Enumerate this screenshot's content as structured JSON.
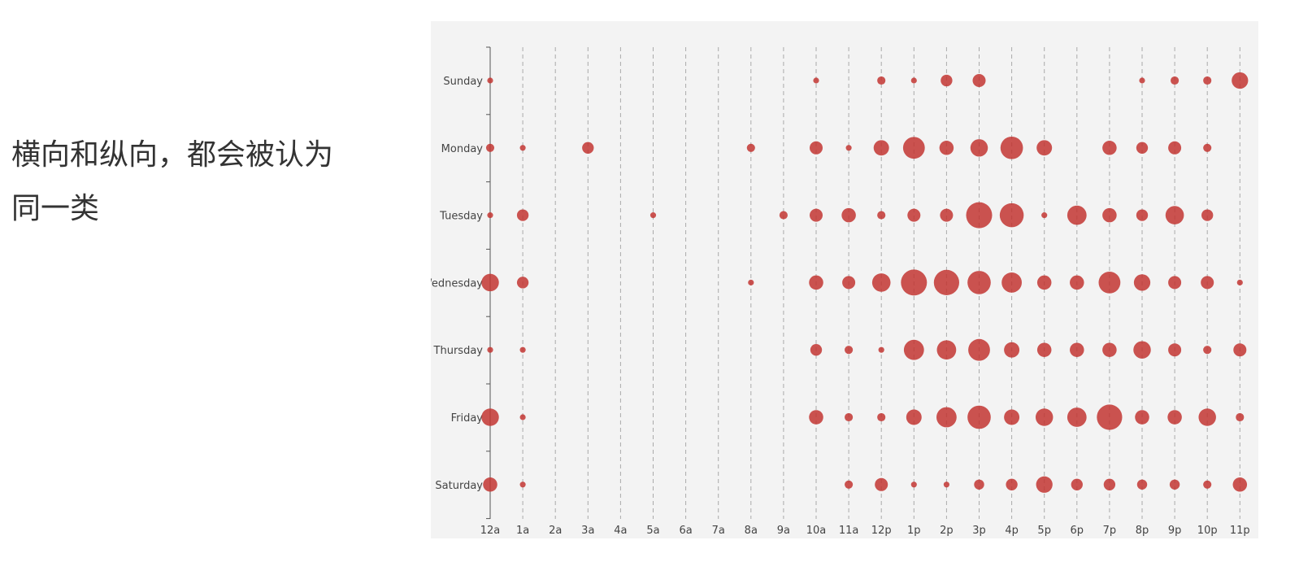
{
  "caption": {
    "line1": "横向和纵向，都会被认为",
    "line2": "同一类"
  },
  "chart_data": {
    "type": "scatter",
    "subtype": "punch-card bubble",
    "x_categories": [
      "12a",
      "1a",
      "2a",
      "3a",
      "4a",
      "5a",
      "6a",
      "7a",
      "8a",
      "9a",
      "10a",
      "11a",
      "12p",
      "1p",
      "2p",
      "3p",
      "4p",
      "5p",
      "6p",
      "7p",
      "8p",
      "9p",
      "10p",
      "11p"
    ],
    "y_categories": [
      "Sunday",
      "Monday",
      "Tuesday",
      "Wednesday",
      "Thursday",
      "Friday",
      "Saturday"
    ],
    "value_meaning": "bubble size",
    "grid": "dashed vertical lines at each hour",
    "colors": {
      "bubble": "#c23531",
      "panel_bg": "#f3f3f3",
      "grid": "#aaaaaa"
    },
    "series": [
      {
        "values": {
          "Sunday": [
            1,
            0,
            0,
            0,
            0,
            0,
            0,
            0,
            0,
            0,
            1,
            0,
            2,
            1,
            4,
            5,
            0,
            0,
            0,
            0,
            1,
            2,
            2,
            8
          ],
          "Monday": [
            2,
            1,
            0,
            4,
            0,
            0,
            0,
            0,
            2,
            0,
            5,
            1,
            7,
            14,
            6,
            9,
            15,
            7,
            0,
            6,
            4,
            5,
            2,
            0
          ],
          "Tuesday": [
            1,
            4,
            0,
            0,
            0,
            1,
            0,
            0,
            0,
            2,
            5,
            6,
            2,
            5,
            5,
            20,
            17,
            1,
            11,
            6,
            4,
            10,
            4,
            0
          ],
          "Wednesday": [
            9,
            4,
            0,
            0,
            0,
            0,
            0,
            0,
            1,
            0,
            6,
            5,
            10,
            20,
            19,
            16,
            12,
            6,
            6,
            14,
            8,
            5,
            5,
            1
          ],
          "Thursday": [
            1,
            1,
            0,
            0,
            0,
            0,
            0,
            0,
            0,
            0,
            4,
            2,
            1,
            12,
            11,
            14,
            7,
            6,
            6,
            6,
            9,
            5,
            2,
            5
          ],
          "Friday": [
            9,
            1,
            0,
            0,
            0,
            0,
            0,
            0,
            0,
            0,
            6,
            2,
            2,
            7,
            12,
            16,
            7,
            9,
            11,
            19,
            6,
            6,
            9,
            2
          ],
          "Saturday": [
            6,
            1,
            0,
            0,
            0,
            0,
            0,
            0,
            0,
            0,
            0,
            2,
            5,
            1,
            1,
            3,
            4,
            8,
            4,
            4,
            3,
            3,
            2,
            6
          ]
        }
      }
    ]
  }
}
